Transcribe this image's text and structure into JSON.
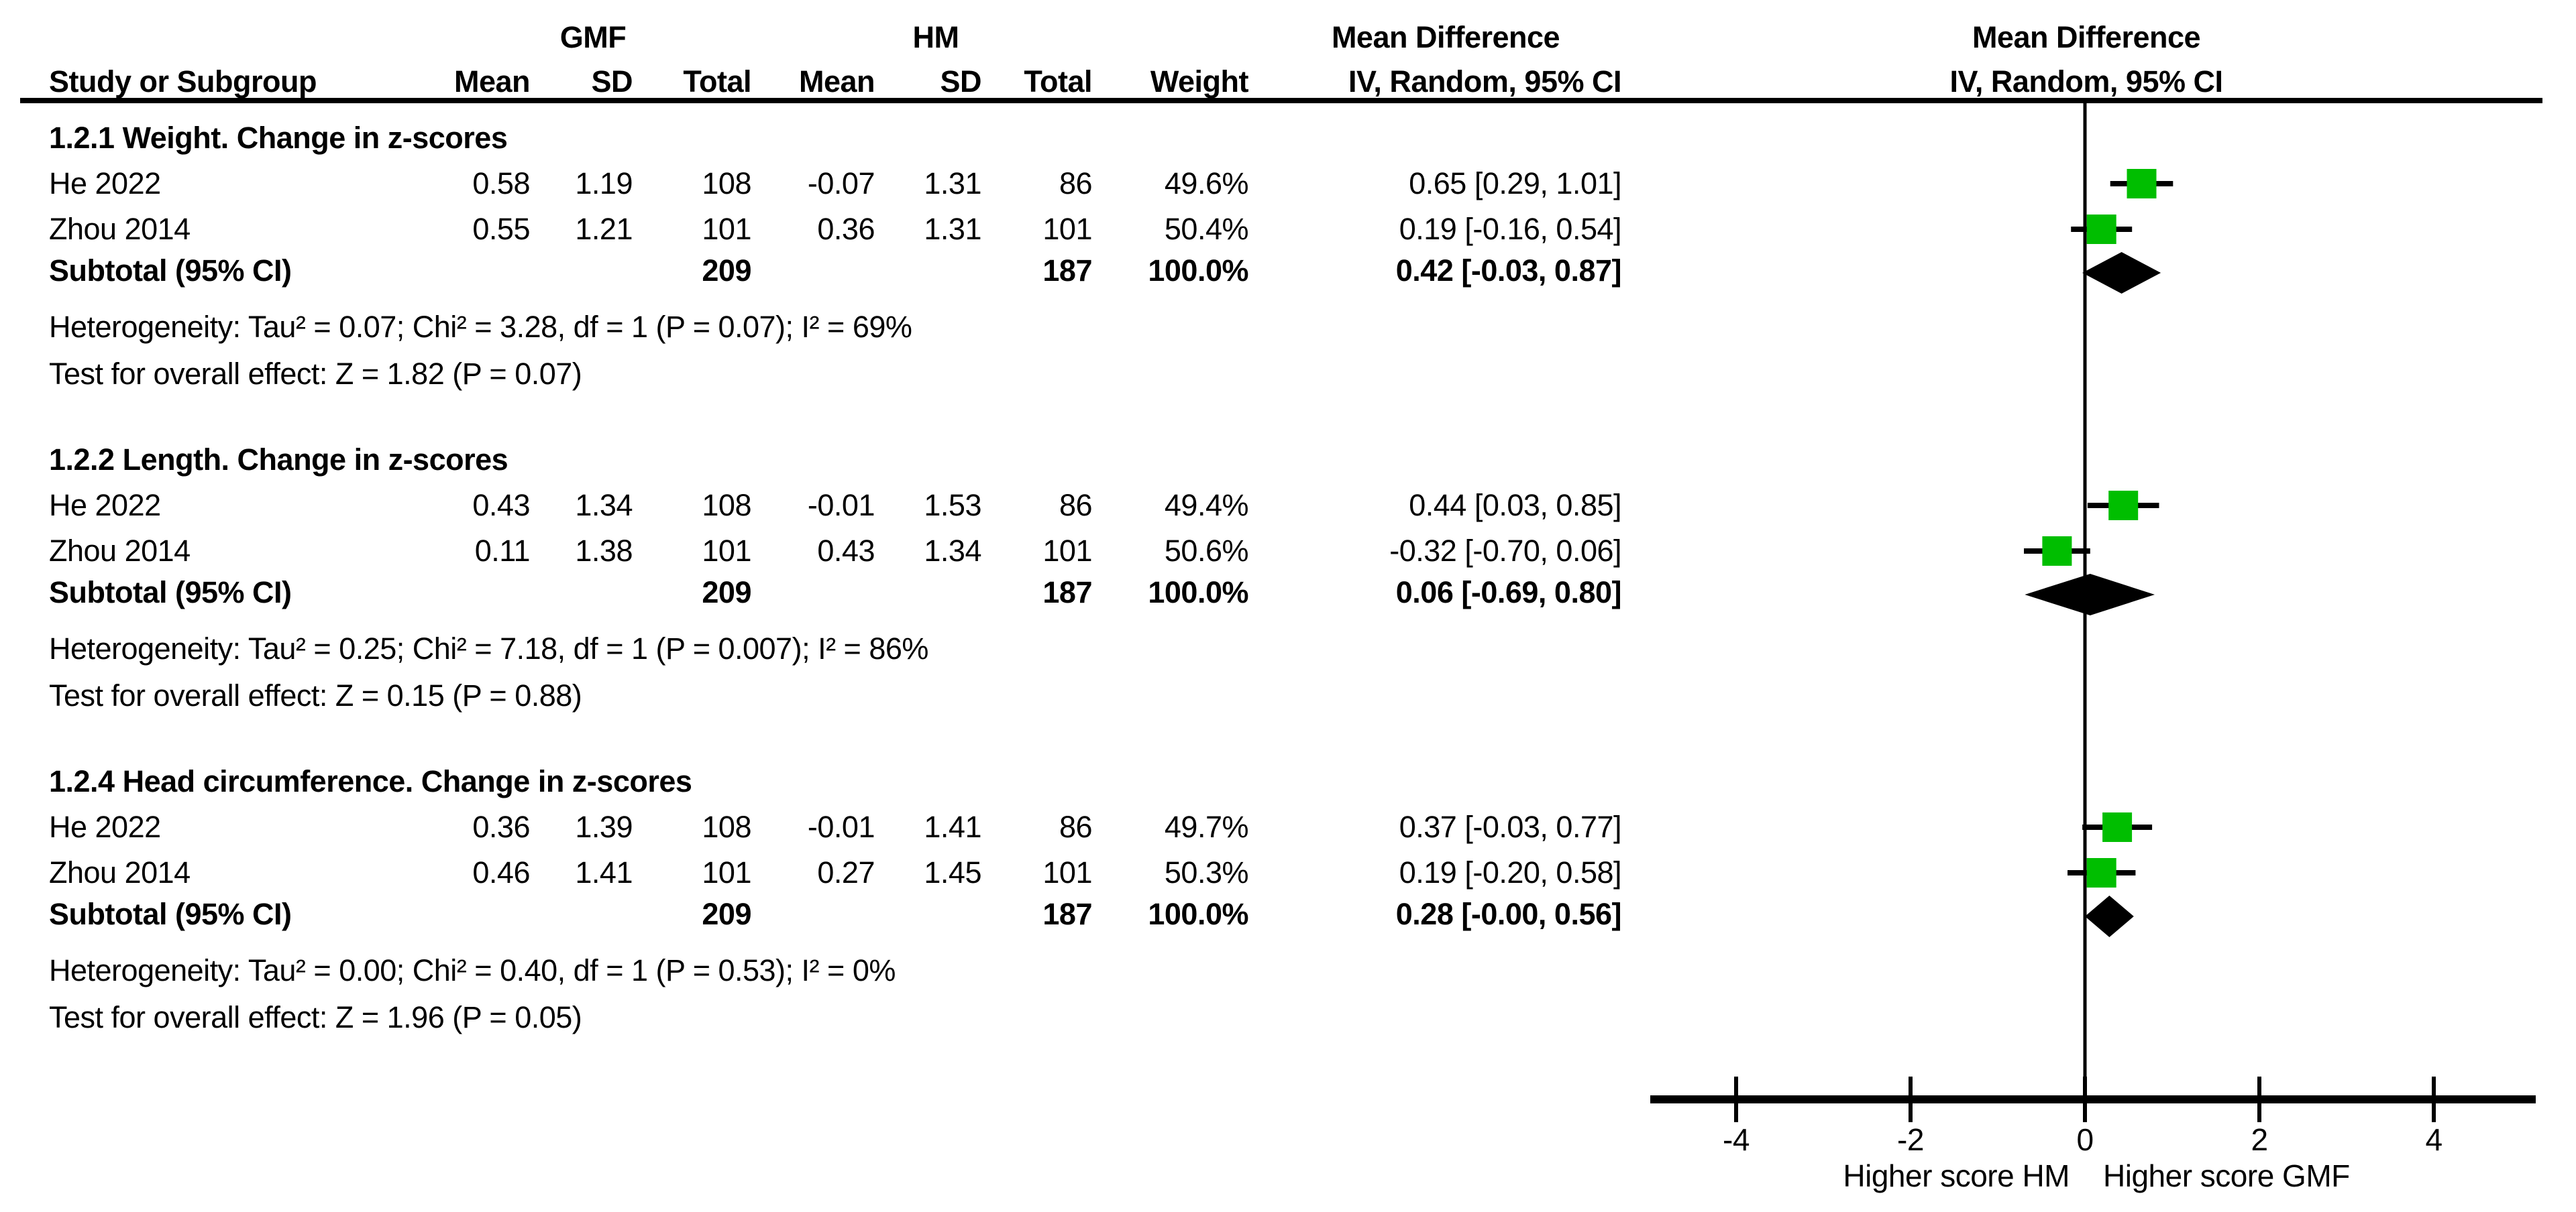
{
  "header": {
    "study_col": "Study or Subgroup",
    "mean": "Mean",
    "sd": "SD",
    "total": "Total",
    "weight": "Weight",
    "md_title": "Mean Difference",
    "method": "IV, Random, 95% CI",
    "group1": "GMF",
    "group2": "HM"
  },
  "chart_data": {
    "type": "forest",
    "effect_label": "Mean Difference",
    "method_label": "IV, Random, 95% CI",
    "group_labels": [
      "GMF",
      "HM"
    ],
    "xlim": [
      -5,
      5.2
    ],
    "xticks": [
      -4,
      -2,
      0,
      2,
      4
    ],
    "xtick_labels": [
      "-4",
      "-2",
      "0",
      "2",
      "4"
    ],
    "xlabel_left": "Higher score HM",
    "xlabel_right": "Higher score GMF",
    "marker_color": "#00be00",
    "line_color": "#000000",
    "subgroups": [
      {
        "title": "1.2.1 Weight. Change in z-scores",
        "studies": [
          {
            "name": "He 2022",
            "gmf": {
              "mean": "0.58",
              "sd": "1.19",
              "total": "108"
            },
            "hm": {
              "mean": "-0.07",
              "sd": "1.31",
              "total": "86"
            },
            "weight": "49.6%",
            "md": 0.65,
            "ci_low": 0.29,
            "ci_high": 1.01,
            "ci_text": "0.65 [0.29, 1.01]"
          },
          {
            "name": "Zhou 2014",
            "gmf": {
              "mean": "0.55",
              "sd": "1.21",
              "total": "101"
            },
            "hm": {
              "mean": "0.36",
              "sd": "1.31",
              "total": "101"
            },
            "weight": "50.4%",
            "md": 0.19,
            "ci_low": -0.16,
            "ci_high": 0.54,
            "ci_text": "0.19 [-0.16, 0.54]"
          }
        ],
        "subtotal": {
          "label": "Subtotal (95% CI)",
          "gmf_total": "209",
          "hm_total": "187",
          "weight": "100.0%",
          "md": 0.42,
          "ci_low": -0.03,
          "ci_high": 0.87,
          "ci_text": "0.42 [-0.03, 0.87]"
        },
        "heterogeneity": "Heterogeneity: Tau² = 0.07; Chi² = 3.28, df = 1 (P = 0.07); I² = 69%",
        "overall_effect": "Test for overall effect: Z = 1.82 (P = 0.07)"
      },
      {
        "title": "1.2.2 Length. Change in z-scores",
        "studies": [
          {
            "name": "He 2022",
            "gmf": {
              "mean": "0.43",
              "sd": "1.34",
              "total": "108"
            },
            "hm": {
              "mean": "-0.01",
              "sd": "1.53",
              "total": "86"
            },
            "weight": "49.4%",
            "md": 0.44,
            "ci_low": 0.03,
            "ci_high": 0.85,
            "ci_text": "0.44 [0.03, 0.85]"
          },
          {
            "name": "Zhou 2014",
            "gmf": {
              "mean": "0.11",
              "sd": "1.38",
              "total": "101"
            },
            "hm": {
              "mean": "0.43",
              "sd": "1.34",
              "total": "101"
            },
            "weight": "50.6%",
            "md": -0.32,
            "ci_low": -0.7,
            "ci_high": 0.06,
            "ci_text": "-0.32 [-0.70, 0.06]"
          }
        ],
        "subtotal": {
          "label": "Subtotal (95% CI)",
          "gmf_total": "209",
          "hm_total": "187",
          "weight": "100.0%",
          "md": 0.06,
          "ci_low": -0.69,
          "ci_high": 0.8,
          "ci_text": "0.06 [-0.69, 0.80]"
        },
        "heterogeneity": "Heterogeneity: Tau² = 0.25; Chi² = 7.18, df = 1 (P = 0.007); I² = 86%",
        "overall_effect": "Test for overall effect: Z = 0.15 (P = 0.88)"
      },
      {
        "title": "1.2.4 Head circumference. Change in z-scores",
        "studies": [
          {
            "name": "He 2022",
            "gmf": {
              "mean": "0.36",
              "sd": "1.39",
              "total": "108"
            },
            "hm": {
              "mean": "-0.01",
              "sd": "1.41",
              "total": "86"
            },
            "weight": "49.7%",
            "md": 0.37,
            "ci_low": -0.03,
            "ci_high": 0.77,
            "ci_text": "0.37 [-0.03, 0.77]"
          },
          {
            "name": "Zhou 2014",
            "gmf": {
              "mean": "0.46",
              "sd": "1.41",
              "total": "101"
            },
            "hm": {
              "mean": "0.27",
              "sd": "1.45",
              "total": "101"
            },
            "weight": "50.3%",
            "md": 0.19,
            "ci_low": -0.2,
            "ci_high": 0.58,
            "ci_text": "0.19 [-0.20, 0.58]"
          }
        ],
        "subtotal": {
          "label": "Subtotal (95% CI)",
          "gmf_total": "209",
          "hm_total": "187",
          "weight": "100.0%",
          "md": 0.28,
          "ci_low": -0.0,
          "ci_high": 0.56,
          "ci_text": "0.28 [-0.00, 0.56]"
        },
        "heterogeneity": "Heterogeneity: Tau² = 0.00; Chi² = 0.40, df = 1 (P = 0.53); I² = 0%",
        "overall_effect": "Test for overall effect: Z = 1.96 (P = 0.05)"
      }
    ]
  }
}
